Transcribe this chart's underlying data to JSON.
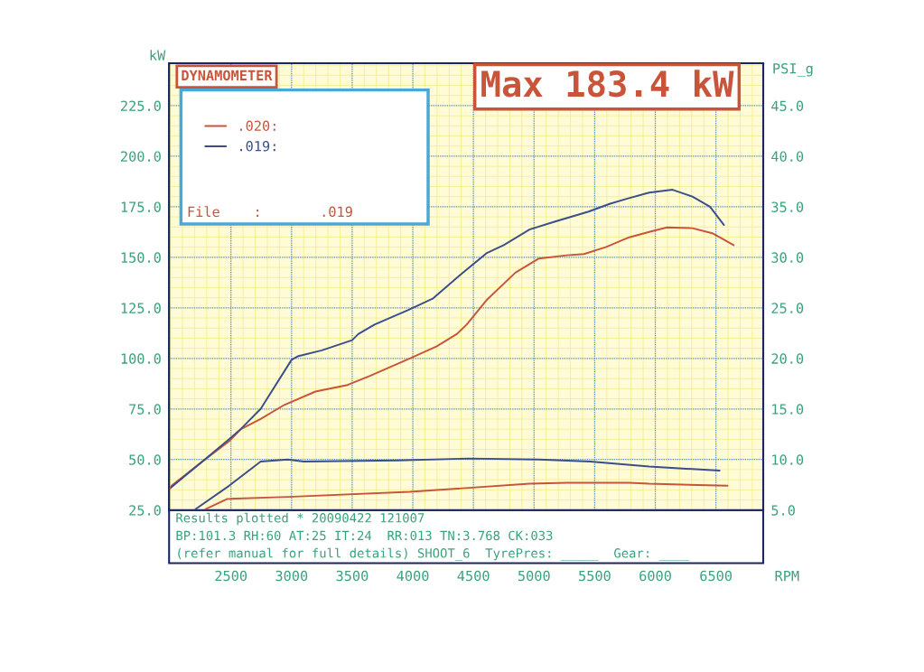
{
  "chart_data": {
    "type": "line",
    "title": "DYNAMOMETER",
    "xlabel": "RPM",
    "ylabel": "kW",
    "y2label": "PSI_g",
    "annotations": [
      "Max 183.4 kW",
      "File    :       .019",
      "Results plotted * 20090422 121007",
      "BP:101.3 RH:60 AT:25 IT:24  RR:013 TN:3.768 CK:033",
      "(refer manual for full details) SHOOT_6  TyrePres: _____  Gear: ____"
    ],
    "series": [
      {
        "name": ".020:",
        "color": "#c8553a",
        "x": [
          2000,
          2010,
          2258,
          2485,
          2582,
          2745,
          2940,
          3197,
          3453,
          3647,
          3975,
          4198,
          4362,
          4444,
          4608,
          4846,
          5040,
          5271,
          5412,
          5591,
          5785,
          5964,
          6098,
          6306,
          6470,
          6646
        ],
        "values": [
          35.7,
          37,
          48.7,
          59,
          65,
          70,
          77,
          83.6,
          86.7,
          91.4,
          100,
          106,
          112,
          116.7,
          128.8,
          142.4,
          149.4,
          151,
          151.6,
          155,
          159.9,
          162.8,
          164.8,
          164.4,
          161.9,
          156
        ]
      },
      {
        "name": ".019:",
        "color": "#3a4f8a",
        "x": [
          2008,
          2485,
          2580,
          2745,
          3000,
          3050,
          3250,
          3500,
          3550,
          3684,
          3960,
          4168,
          4392,
          4607,
          4750,
          4962,
          5174,
          5450,
          5628,
          5770,
          5949,
          6142,
          6306,
          6451,
          6566
        ],
        "values": [
          36.2,
          60,
          65,
          75,
          99.3,
          101,
          104,
          109,
          112,
          116.7,
          123.9,
          129.7,
          141.3,
          152,
          156,
          163.7,
          167.7,
          172.6,
          176.5,
          179,
          182,
          183.4,
          180,
          175,
          166
        ]
      },
      {
        "color": "#c8553a",
        "axis": "y2",
        "x": [
          2292,
          2470,
          2969,
          3975,
          4962,
          5271,
          5785,
          5949,
          6596
        ],
        "values": [
          5.1,
          6.1,
          6.3,
          6.8,
          7.6,
          7.7,
          7.7,
          7.6,
          7.4
        ]
      },
      {
        "color": "#3a4f8a",
        "axis": "y2",
        "x": [
          2210,
          2485,
          2745,
          2969,
          3100,
          3878,
          4459,
          5040,
          5464,
          5949,
          6530
        ],
        "values": [
          5.1,
          7.4,
          9.8,
          10.0,
          9.8,
          9.9,
          10.1,
          10.0,
          9.8,
          9.3,
          8.9
        ]
      }
    ],
    "xlim": [
      1990,
      6890
    ],
    "xticks": [
      2500,
      3000,
      3500,
      4000,
      4500,
      5000,
      5500,
      6000,
      6500
    ],
    "ylim": [
      25,
      246
    ],
    "yticks": [
      {
        "value": 25,
        "label": "25.0"
      },
      {
        "value": 50,
        "label": "50.0"
      },
      {
        "value": 75,
        "label": "75.0"
      },
      {
        "value": 100,
        "label": "100.0"
      },
      {
        "value": 125,
        "label": "125.0"
      },
      {
        "value": 150,
        "label": "150.0"
      },
      {
        "value": 175,
        "label": "175.0"
      },
      {
        "value": 200,
        "label": "200.0"
      },
      {
        "value": 225,
        "label": "225.0"
      }
    ],
    "y2lim": [
      5,
      49.2
    ],
    "y2ticks": [
      {
        "value": 5,
        "label": "5.0"
      },
      {
        "value": 10,
        "label": "10.0"
      },
      {
        "value": 15,
        "label": "15.0"
      },
      {
        "value": 20,
        "label": "20.0"
      },
      {
        "value": 25,
        "label": "25.0"
      },
      {
        "value": 30,
        "label": "30.0"
      },
      {
        "value": 35,
        "label": "35.0"
      },
      {
        "value": 40,
        "label": "40.0"
      },
      {
        "value": 45,
        "label": "45.0"
      }
    ],
    "grid": true,
    "legend": "top left",
    "marker": "none",
    "line_style": "solid"
  }
}
